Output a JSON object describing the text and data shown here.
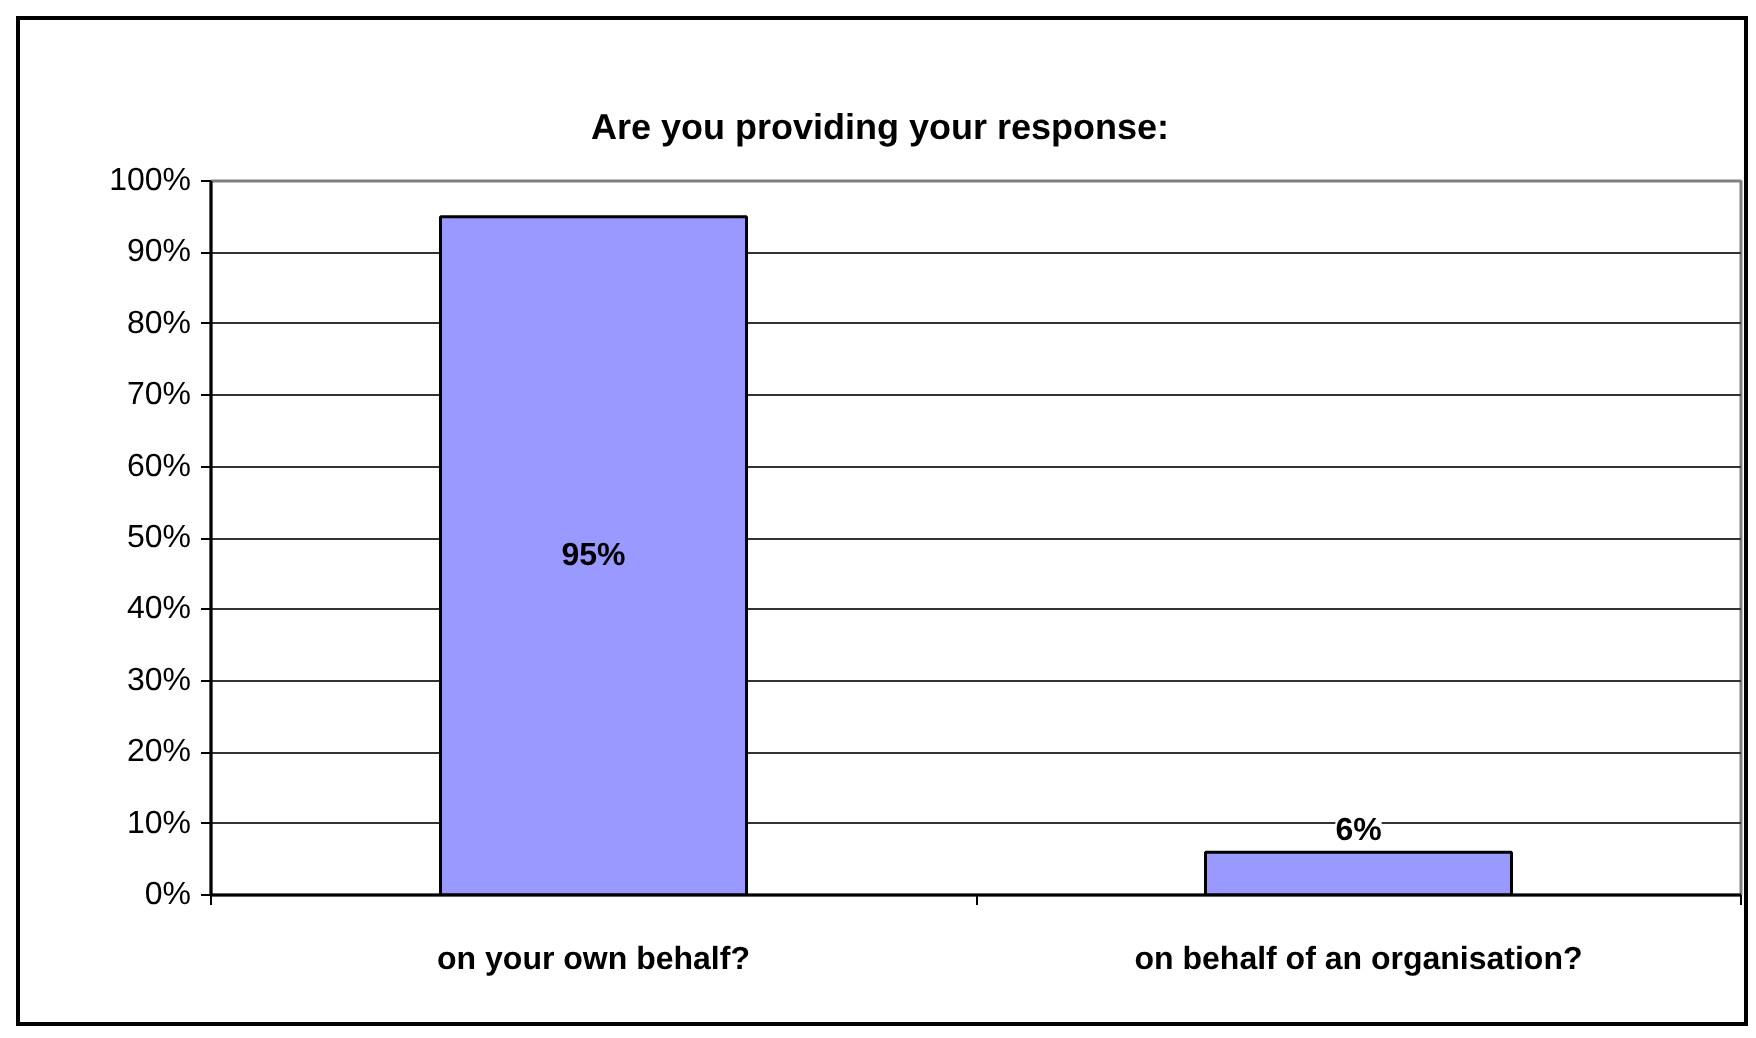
{
  "chart_data": {
    "type": "bar",
    "title": "Are you providing your response:",
    "categories": [
      "on your own behalf?",
      "on behalf of an organisation?"
    ],
    "values": [
      95,
      6
    ],
    "value_labels": [
      "95%",
      "6%"
    ],
    "color": "#9999ff",
    "ylim": [
      0,
      100
    ],
    "yticks": [
      {
        "value": 0,
        "label": "0%"
      },
      {
        "value": 10,
        "label": "10%"
      },
      {
        "value": 20,
        "label": "20%"
      },
      {
        "value": 30,
        "label": "30%"
      },
      {
        "value": 40,
        "label": "40%"
      },
      {
        "value": 50,
        "label": "50%"
      },
      {
        "value": 60,
        "label": "60%"
      },
      {
        "value": 70,
        "label": "70%"
      },
      {
        "value": 80,
        "label": "80%"
      },
      {
        "value": 90,
        "label": "90%"
      },
      {
        "value": 100,
        "label": "100%"
      }
    ],
    "grid": "y"
  }
}
